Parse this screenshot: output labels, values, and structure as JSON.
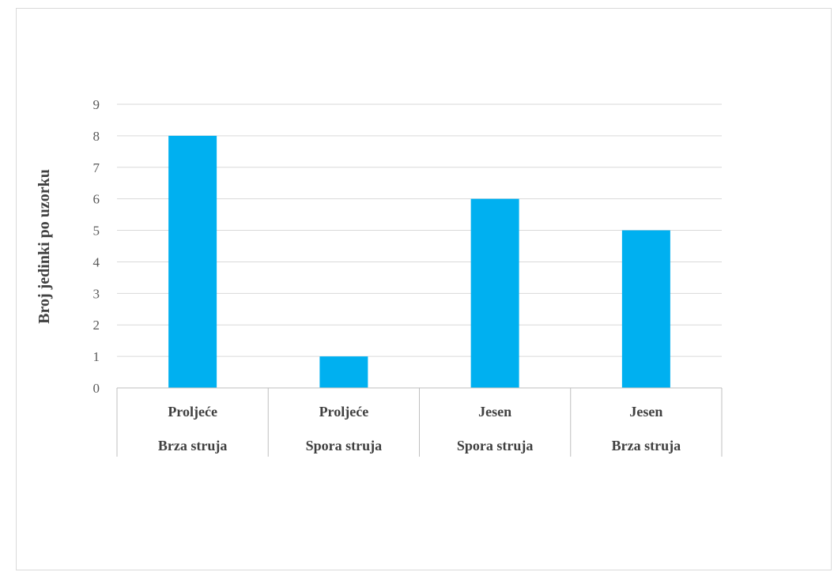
{
  "chart_data": {
    "type": "bar",
    "title": "",
    "xlabel": "",
    "ylabel": "Broj jedinki po uzorku",
    "ylim": [
      0,
      9
    ],
    "yticks": [
      0,
      1,
      2,
      3,
      4,
      5,
      6,
      7,
      8,
      9
    ],
    "grid": true,
    "legend": "none",
    "categories": [
      {
        "season": "Proljeće",
        "current": "Brza struja"
      },
      {
        "season": "Proljeće",
        "current": "Spora struja"
      },
      {
        "season": "Jesen",
        "current": "Spora struja"
      },
      {
        "season": "Jesen",
        "current": "Brza struja"
      }
    ],
    "values": [
      8,
      1,
      6,
      5
    ],
    "colors": {
      "bar": "#00b0f0",
      "grid": "#d9d9d9",
      "axis": "#bfbfbf"
    }
  }
}
